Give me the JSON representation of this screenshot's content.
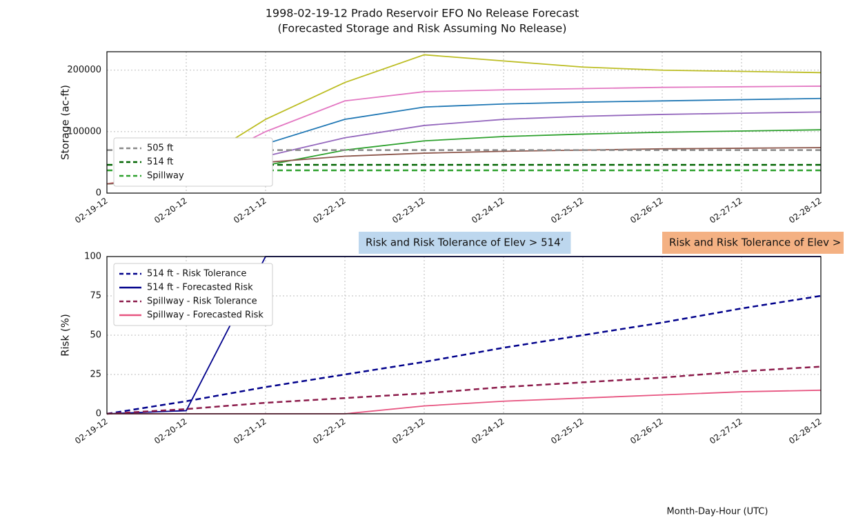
{
  "chart_data": [
    {
      "type": "line",
      "title": "1998-02-19-12 Prado Reservoir EFO No Release Forecast",
      "subtitle": "(Forecasted Storage and Risk Assuming No Release)",
      "y_label": "Storage (ac-ft)",
      "categories": [
        "02-19-12",
        "02-20-12",
        "02-21-12",
        "02-22-12",
        "02-23-12",
        "02-24-12",
        "02-25-12",
        "02-26-12",
        "02-27-12",
        "02-28-12"
      ],
      "ylim": [
        0,
        230000
      ],
      "yticks": [
        0,
        100000,
        200000
      ],
      "grid": true,
      "legend": "lower left",
      "series": [
        {
          "color": "#bcbd22",
          "values": [
            15000,
            40000,
            120000,
            180000,
            225000,
            215000,
            205000,
            200000,
            198000,
            196000
          ]
        },
        {
          "color": "#1f77b4",
          "values": [
            15000,
            30000,
            80000,
            120000,
            140000,
            145000,
            148000,
            150000,
            152000,
            154000
          ]
        },
        {
          "color": "#9467bd",
          "values": [
            15000,
            25000,
            60000,
            90000,
            110000,
            120000,
            125000,
            128000,
            130000,
            132000
          ]
        },
        {
          "color": "#2ca02c",
          "values": [
            15000,
            20000,
            45000,
            70000,
            85000,
            92000,
            96000,
            99000,
            101000,
            103000
          ]
        },
        {
          "color": "#e377c2",
          "values": [
            15000,
            35000,
            100000,
            150000,
            165000,
            168000,
            170000,
            172000,
            173000,
            174000
          ]
        },
        {
          "color": "#8c564b",
          "values": [
            15000,
            22000,
            50000,
            60000,
            65000,
            68000,
            70000,
            72000,
            73000,
            74000
          ]
        },
        {
          "name": "505 ft",
          "color": "#888888",
          "dash": "dashed",
          "values": [
            70000,
            70000,
            70000,
            70000,
            70000,
            70000,
            70000,
            70000,
            70000,
            70000
          ]
        },
        {
          "name": "514 ft",
          "color": "#006400",
          "dash": "dashed",
          "values": [
            46000,
            46000,
            46000,
            46000,
            46000,
            46000,
            46000,
            46000,
            46000,
            46000
          ]
        },
        {
          "name": "Spillway",
          "color": "#2ca02c",
          "dash": "dashed",
          "values": [
            37000,
            37000,
            37000,
            37000,
            37000,
            37000,
            37000,
            37000,
            37000,
            37000
          ]
        }
      ]
    },
    {
      "type": "line",
      "y_label": "Risk (%)",
      "x_label": "Month-Day-Hour (UTC)",
      "categories": [
        "02-19-12",
        "02-20-12",
        "02-21-12",
        "02-22-12",
        "02-23-12",
        "02-24-12",
        "02-25-12",
        "02-26-12",
        "02-27-12",
        "02-28-12"
      ],
      "ylim": [
        0,
        100
      ],
      "yticks": [
        0,
        25,
        50,
        75,
        100
      ],
      "grid": true,
      "legend": "upper left",
      "annotations": [
        {
          "text": "Risk and Risk Tolerance of Elev > 514’",
          "color": "#bdd7ee"
        },
        {
          "text": "Risk and Risk Tolerance of Elev > Spillway",
          "color": "#f4b183"
        }
      ],
      "series": [
        {
          "name": "514 ft - Risk Tolerance",
          "color": "#00008b",
          "dash": "dashed",
          "values": [
            0,
            8,
            17,
            25,
            33,
            42,
            50,
            58,
            67,
            75
          ]
        },
        {
          "name": "514 ft - Forecasted Risk",
          "color": "#00008b",
          "values": [
            0,
            2,
            100,
            100,
            100,
            100,
            100,
            100,
            100,
            100
          ]
        },
        {
          "name": "Spillway - Risk Tolerance",
          "color": "#8b1a4a",
          "dash": "dashed",
          "values": [
            0,
            3,
            7,
            10,
            13,
            17,
            20,
            23,
            27,
            30
          ]
        },
        {
          "name": "Spillway - Forecasted Risk",
          "color": "#e75480",
          "values": [
            0,
            0,
            0,
            0,
            5,
            8,
            10,
            12,
            14,
            15
          ]
        }
      ]
    }
  ]
}
